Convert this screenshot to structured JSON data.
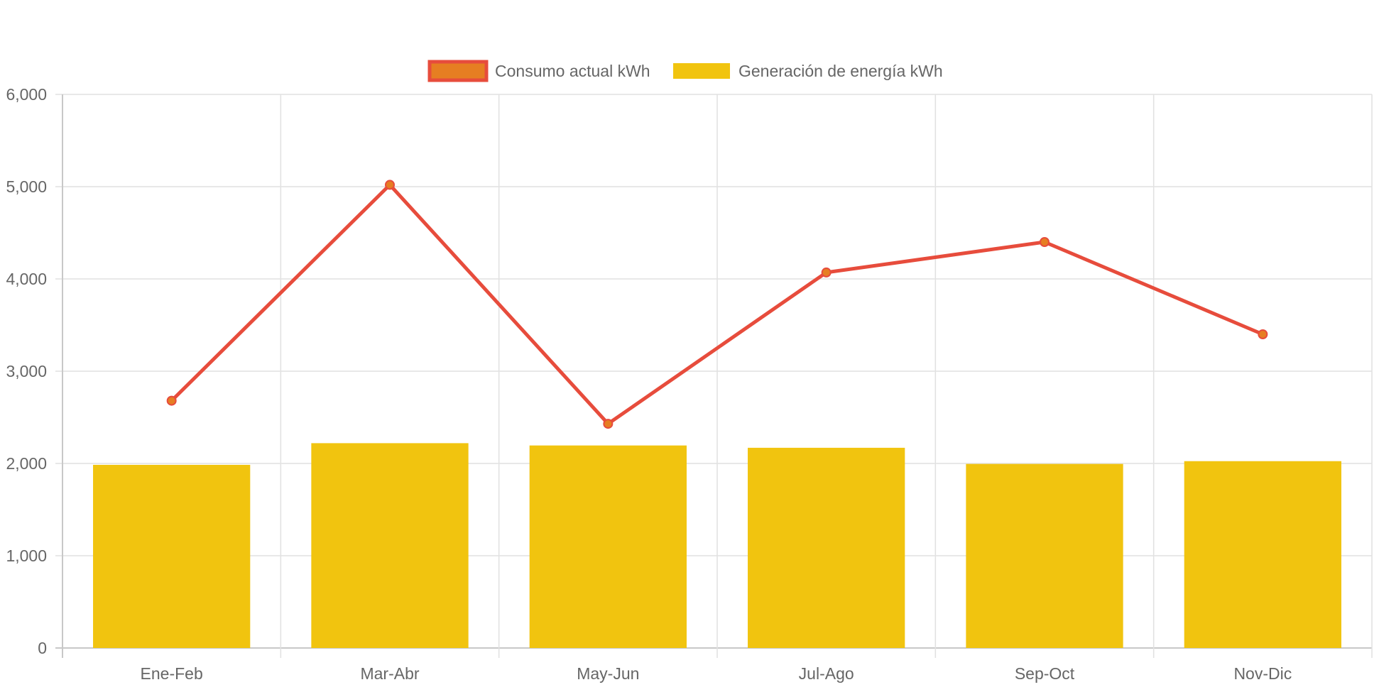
{
  "chart_data": {
    "type": "bar",
    "categories": [
      "Ene-Feb",
      "Mar-Abr",
      "May-Jun",
      "Jul-Ago",
      "Sep-Oct",
      "Nov-Dic"
    ],
    "series": [
      {
        "name": "Consumo actual kWh",
        "type": "line",
        "values": [
          2680,
          5020,
          2430,
          4070,
          4400,
          3400
        ],
        "color": "#e74c3c",
        "point_color": "#e67e22"
      },
      {
        "name": "Generación de energía kWh",
        "type": "bar",
        "values": [
          1985,
          2220,
          2195,
          2170,
          1995,
          2025
        ],
        "color": "#f1c40f"
      }
    ],
    "y_ticks": [
      "0",
      "1,000",
      "2,000",
      "3,000",
      "4,000",
      "5,000",
      "6,000"
    ],
    "ylim": [
      0,
      6000
    ],
    "grid": true,
    "legend": "top-center",
    "title": "",
    "xlabel": "",
    "ylabel": ""
  }
}
